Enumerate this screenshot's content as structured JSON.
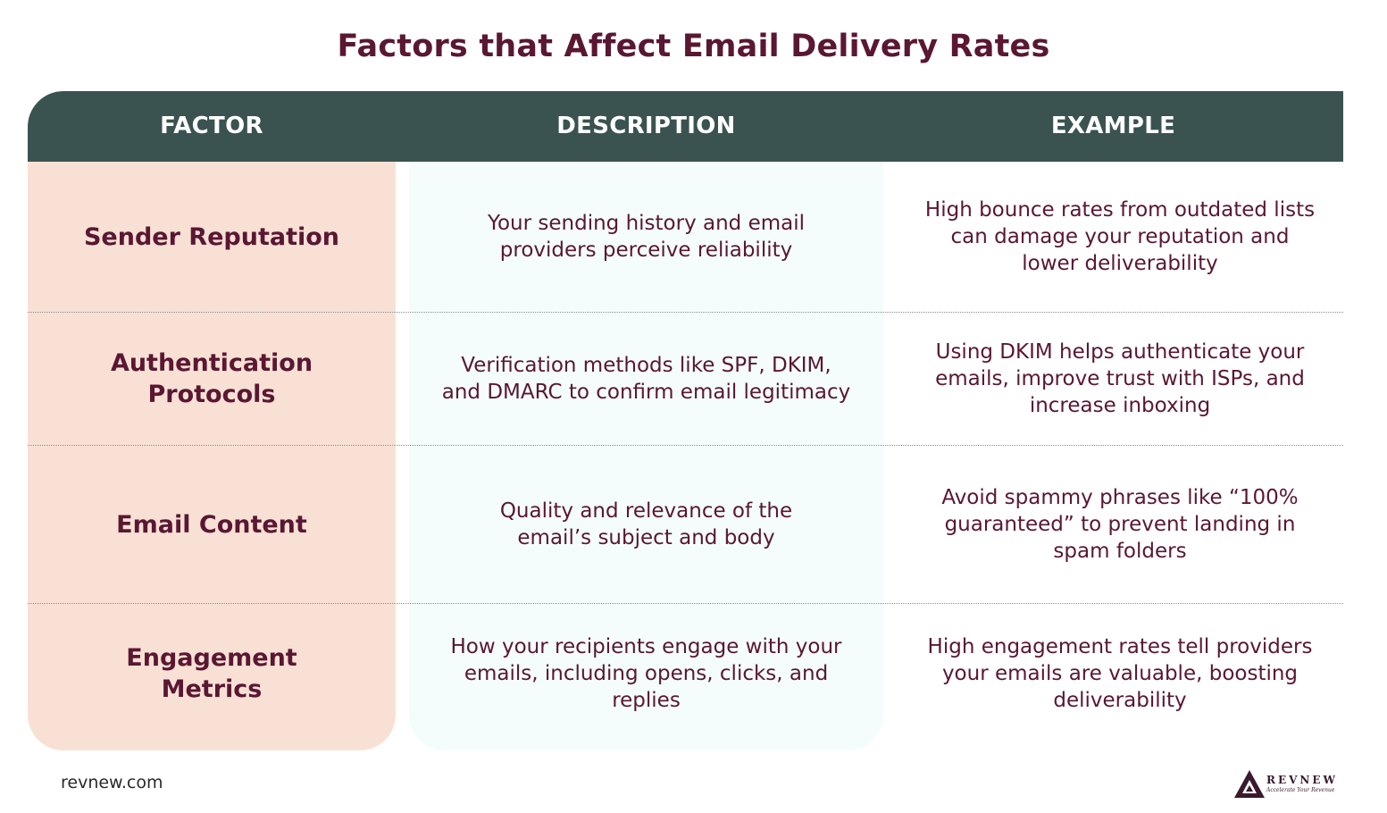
{
  "title": "Factors that Affect Email Delivery Rates",
  "headers": {
    "factor": "FACTOR",
    "description": "DESCRIPTION",
    "example": "EXAMPLE"
  },
  "rows": [
    {
      "factor": "Sender Reputation",
      "description": "Your sending history and email providers perceive reliability",
      "example": "High bounce rates from outdated lists can damage your reputation and lower deliverability"
    },
    {
      "factor": "Authentication Protocols",
      "description": "Verification methods like SPF, DKIM, and DMARC to confirm email legitimacy",
      "example": "Using DKIM helps authenticate your emails, improve trust with ISPs, and increase inboxing"
    },
    {
      "factor": "Email Content",
      "description": "Quality and relevance of the email’s subject and body",
      "example": "Avoid spammy phrases like “100% guaranteed” to prevent landing in spam folders"
    },
    {
      "factor": "Engagement Metrics",
      "description": "How your recipients engage with your emails, including opens, clicks, and replies",
      "example": "High engagement rates tell providers your emails are valuable, boosting deliverability"
    }
  ],
  "footer": {
    "url": "revnew.com",
    "logo_name": "REVNEW",
    "logo_tagline": "Accelerate Your Revenue"
  },
  "colors": {
    "title": "#5a1733",
    "header_bg": "#3a5350",
    "factor_col_bg": "#f8e1d4",
    "description_col_bg": "#f4fdfc"
  }
}
